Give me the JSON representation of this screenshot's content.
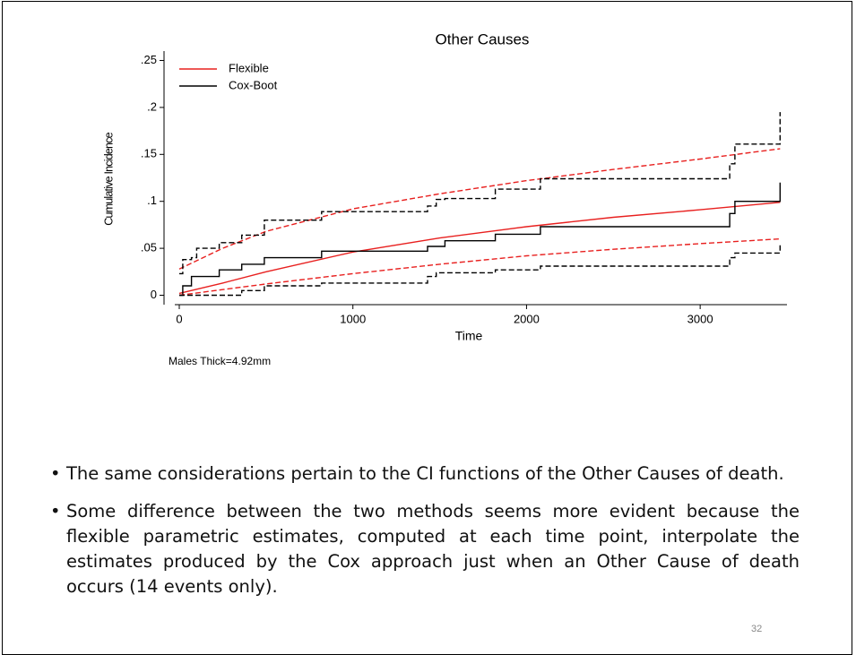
{
  "chart_data": {
    "type": "line",
    "title": "Other Causes",
    "xlabel": "Time",
    "ylabel": "Cumulative Incidence",
    "note": "Males Thick=4.92mm",
    "xlim": [
      0,
      3500
    ],
    "xticks": [
      0,
      1000,
      2000,
      3000
    ],
    "ylim": [
      -0.01,
      0.26
    ],
    "yticks": [
      {
        "value": 0,
        "label": "0"
      },
      {
        "value": 0.05,
        "label": ".05"
      },
      {
        "value": 0.1,
        "label": ".1"
      },
      {
        "value": 0.15,
        "label": ".15"
      },
      {
        "value": 0.2,
        "label": ".2"
      },
      {
        "value": 0.25,
        "label": ".25"
      }
    ],
    "legend": "top-left",
    "series": [
      {
        "name": "Flexible",
        "color": "#e8201f",
        "dashed": false,
        "step": false,
        "x": [
          0,
          250,
          500,
          1000,
          1500,
          2000,
          2500,
          3000,
          3460
        ],
        "values": [
          0.002,
          0.013,
          0.025,
          0.046,
          0.061,
          0.073,
          0.083,
          0.091,
          0.099
        ]
      },
      {
        "name": "Cox-Boot",
        "color": "#000000",
        "dashed": false,
        "step": true,
        "x": [
          0,
          20,
          70,
          230,
          360,
          490,
          820,
          1430,
          1530,
          1820,
          2080,
          3170,
          3200,
          3460
        ],
        "values": [
          0,
          0.01,
          0.02,
          0.027,
          0.033,
          0.04,
          0.047,
          0.052,
          0.058,
          0.065,
          0.073,
          0.087,
          0.1,
          0.12
        ]
      },
      {
        "color": "#e8201f",
        "dashed": true,
        "step": false,
        "x": [
          0,
          250,
          500,
          1000,
          1500,
          2000,
          2500,
          3000,
          3460
        ],
        "values": [
          0.028,
          0.05,
          0.068,
          0.092,
          0.108,
          0.122,
          0.134,
          0.145,
          0.156
        ]
      },
      {
        "color": "#e8201f",
        "dashed": true,
        "step": false,
        "x": [
          0,
          250,
          500,
          1000,
          1500,
          2000,
          2500,
          3000,
          3460
        ],
        "values": [
          0,
          0.006,
          0.012,
          0.023,
          0.033,
          0.042,
          0.049,
          0.055,
          0.06
        ]
      },
      {
        "color": "#000000",
        "dashed": true,
        "step": true,
        "x": [
          0,
          20,
          70,
          100,
          230,
          360,
          490,
          820,
          1430,
          1480,
          1530,
          1820,
          2080,
          3170,
          3200,
          3460
        ],
        "values": [
          0.023,
          0.038,
          0.04,
          0.05,
          0.056,
          0.064,
          0.08,
          0.089,
          0.095,
          0.102,
          0.103,
          0.113,
          0.124,
          0.14,
          0.161,
          0.195
        ]
      },
      {
        "color": "#000000",
        "dashed": true,
        "step": true,
        "x": [
          0,
          360,
          490,
          820,
          1430,
          1480,
          1820,
          2080,
          3170,
          3200,
          3460
        ],
        "values": [
          0,
          0.005,
          0.01,
          0.013,
          0.02,
          0.024,
          0.027,
          0.031,
          0.04,
          0.045,
          0.055
        ]
      }
    ]
  },
  "bullets": [
    "The same considerations pertain to the CI functions of the Other Causes of death.",
    "Some difference between the two methods seems more evident because the flexible parametric estimates, computed at each time point, interpolate the estimates produced by the Cox approach just when an Other Cause of death occurs (14 events only)."
  ],
  "page_number": "32"
}
